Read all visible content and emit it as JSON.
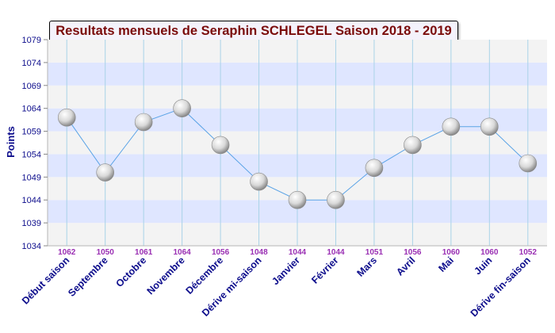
{
  "chart_data": {
    "type": "line",
    "title": "Resultats mensuels de Seraphin SCHLEGEL Saison 2018 - 2019",
    "ylabel": "Points",
    "xlabel": "",
    "ylim": [
      1034,
      1079
    ],
    "yticks": [
      1034,
      1039,
      1044,
      1049,
      1054,
      1059,
      1064,
      1069,
      1074,
      1079
    ],
    "grid": true,
    "categories": [
      "Début saison",
      "Septembre",
      "Octobre",
      "Novembre",
      "Décembre",
      "Dérive mi-saison",
      "Janvier",
      "Février",
      "Mars",
      "Avril",
      "Mai",
      "Juin",
      "Dérive fin-saison"
    ],
    "values": [
      1062,
      1050,
      1061,
      1064,
      1056,
      1048,
      1044,
      1044,
      1051,
      1056,
      1060,
      1060,
      1052
    ],
    "colors": {
      "line": "#5aa3e6",
      "value_label": "#9a2fb3",
      "category_label": "#0d0d8c",
      "ytick_label": "#0d0d8c",
      "band": "#dfe6ff",
      "title": "#7a0a0a"
    }
  }
}
